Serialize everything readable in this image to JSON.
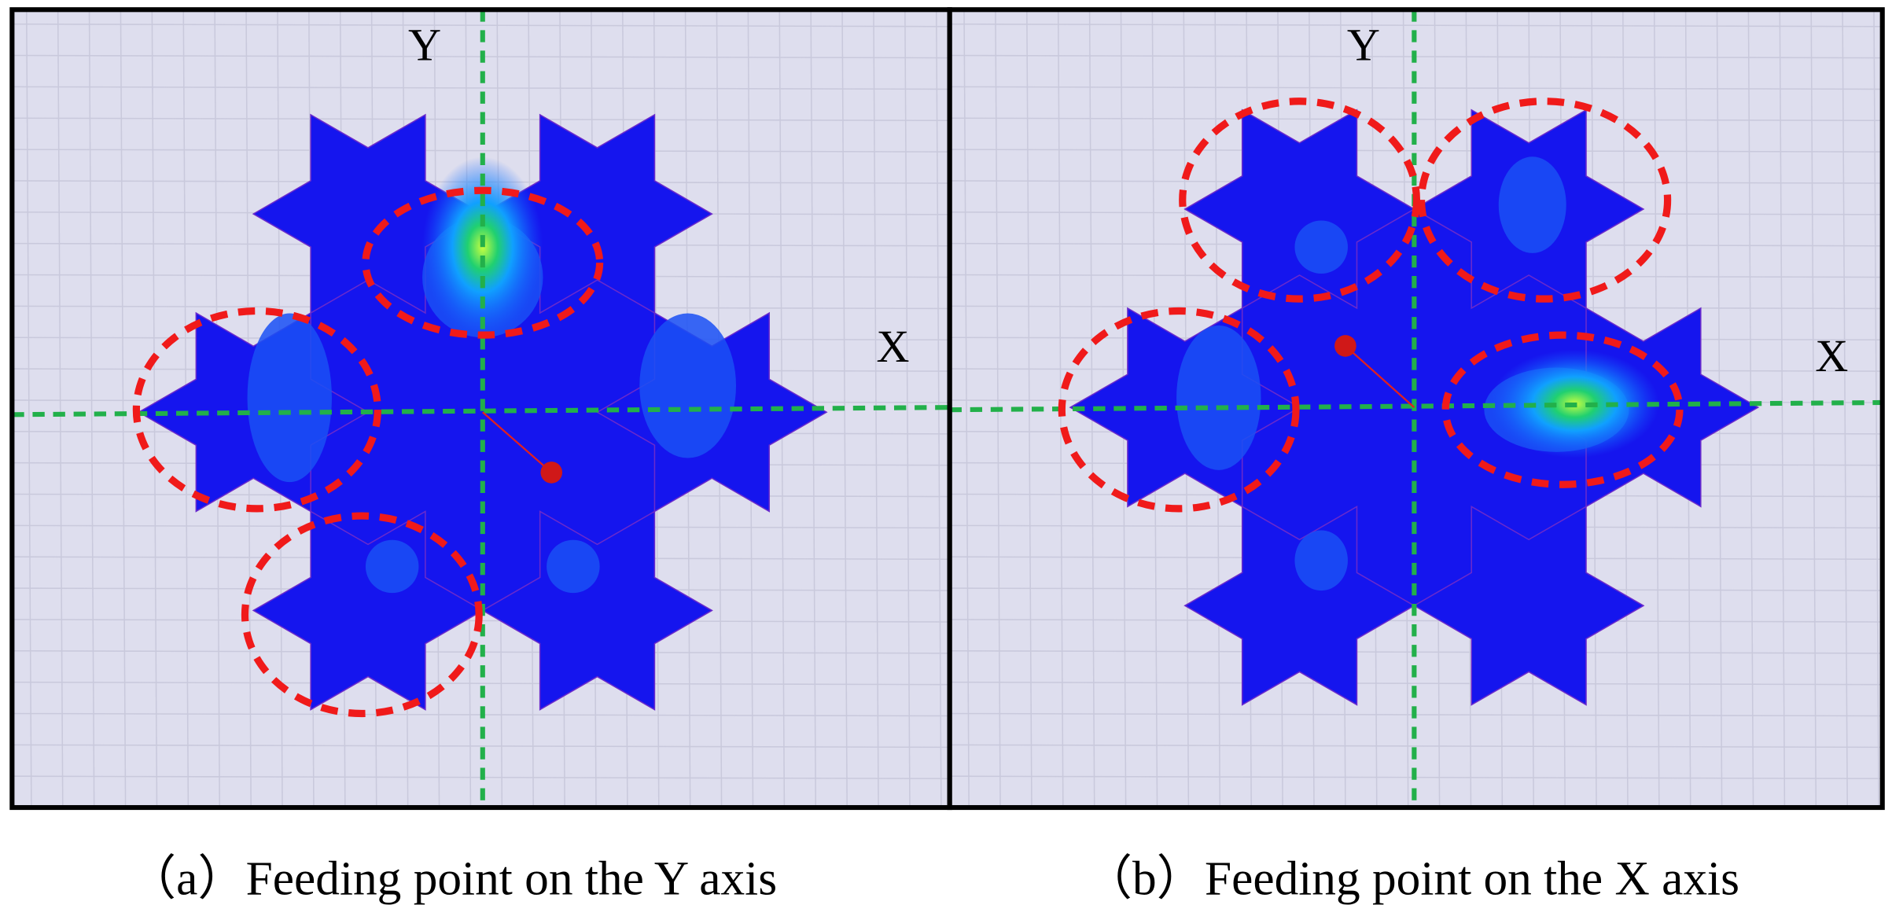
{
  "panels": [
    {
      "y_label": "Y",
      "x_label": "X",
      "caption": "（a）Feeding point on the Y axis"
    },
    {
      "y_label": "Y",
      "x_label": "X",
      "caption": "（b）Feeding point on the X axis"
    }
  ]
}
